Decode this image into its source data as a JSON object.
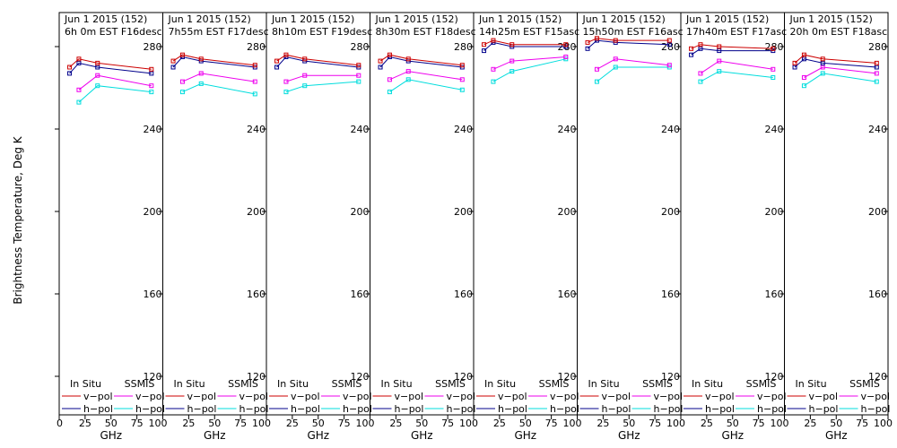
{
  "chart_data": {
    "type": "line",
    "ylabel": "Brightness Temperature, Deg K",
    "xlabel": "GHz",
    "ylim": [
      110,
      290
    ],
    "yticks": [
      120,
      160,
      200,
      240,
      280
    ],
    "xlim": [
      0,
      100
    ],
    "xticks": [
      0,
      25,
      50,
      75,
      100
    ],
    "frequencies": [
      10,
      19,
      37,
      89
    ],
    "legend": {
      "in_situ_title": "In Situ",
      "ssmis_title": "SSMIS",
      "vpol": "v−pol",
      "hpol": "h−pol"
    },
    "colors": {
      "insitu_v": "#cc0000",
      "insitu_h": "#00008b",
      "ssmis_v": "#ee00ee",
      "ssmis_h": "#00dddd"
    },
    "panels": [
      {
        "title1": "Jun 1 2015 (152)",
        "title2": "6h 0m  EST F16desc",
        "insitu_v": [
          270,
          274,
          272,
          269
        ],
        "insitu_h": [
          267,
          272,
          270,
          267
        ],
        "ssmis_v": [
          null,
          259,
          266,
          261
        ],
        "ssmis_h": [
          null,
          253,
          261,
          258
        ]
      },
      {
        "title1": "Jun 1 2015 (152)",
        "title2": "7h55m  EST F17desc",
        "insitu_v": [
          273,
          276,
          274,
          271
        ],
        "insitu_h": [
          270,
          275,
          273,
          270
        ],
        "ssmis_v": [
          null,
          263,
          267,
          263
        ],
        "ssmis_h": [
          null,
          258,
          262,
          257
        ]
      },
      {
        "title1": "Jun 1 2015 (152)",
        "title2": "8h10m  EST F19desc",
        "insitu_v": [
          273,
          276,
          274,
          271
        ],
        "insitu_h": [
          270,
          275,
          273,
          270
        ],
        "ssmis_v": [
          null,
          263,
          266,
          266
        ],
        "ssmis_h": [
          null,
          258,
          261,
          263
        ]
      },
      {
        "title1": "Jun 1 2015 (152)",
        "title2": "8h30m  EST F18desc",
        "insitu_v": [
          273,
          276,
          274,
          271
        ],
        "insitu_h": [
          270,
          275,
          273,
          270
        ],
        "ssmis_v": [
          null,
          264,
          268,
          264
        ],
        "ssmis_h": [
          null,
          258,
          264,
          259
        ]
      },
      {
        "title1": "Jun 1 2015 (152)",
        "title2": "14h25m  EST F15asc",
        "insitu_v": [
          281,
          283,
          281,
          281
        ],
        "insitu_h": [
          278,
          282,
          280,
          280
        ],
        "ssmis_v": [
          null,
          269,
          273,
          275
        ],
        "ssmis_h": [
          null,
          263,
          268,
          274
        ]
      },
      {
        "title1": "Jun 1 2015 (152)",
        "title2": "15h50m  EST F16asc",
        "insitu_v": [
          282,
          284,
          283,
          283
        ],
        "insitu_h": [
          279,
          283,
          282,
          281
        ],
        "ssmis_v": [
          null,
          269,
          274,
          271
        ],
        "ssmis_h": [
          null,
          263,
          270,
          270
        ]
      },
      {
        "title1": "Jun 1 2015 (152)",
        "title2": "17h40m  EST F17asc",
        "insitu_v": [
          279,
          281,
          280,
          279
        ],
        "insitu_h": [
          276,
          279,
          278,
          278
        ],
        "ssmis_v": [
          null,
          267,
          273,
          269
        ],
        "ssmis_h": [
          null,
          263,
          268,
          265
        ]
      },
      {
        "title1": "Jun 1 2015 (152)",
        "title2": "20h 0m  EST F18asc",
        "insitu_v": [
          272,
          276,
          274,
          272
        ],
        "insitu_h": [
          270,
          274,
          272,
          270
        ],
        "ssmis_v": [
          null,
          265,
          270,
          267
        ],
        "ssmis_h": [
          null,
          261,
          267,
          263
        ]
      }
    ]
  }
}
